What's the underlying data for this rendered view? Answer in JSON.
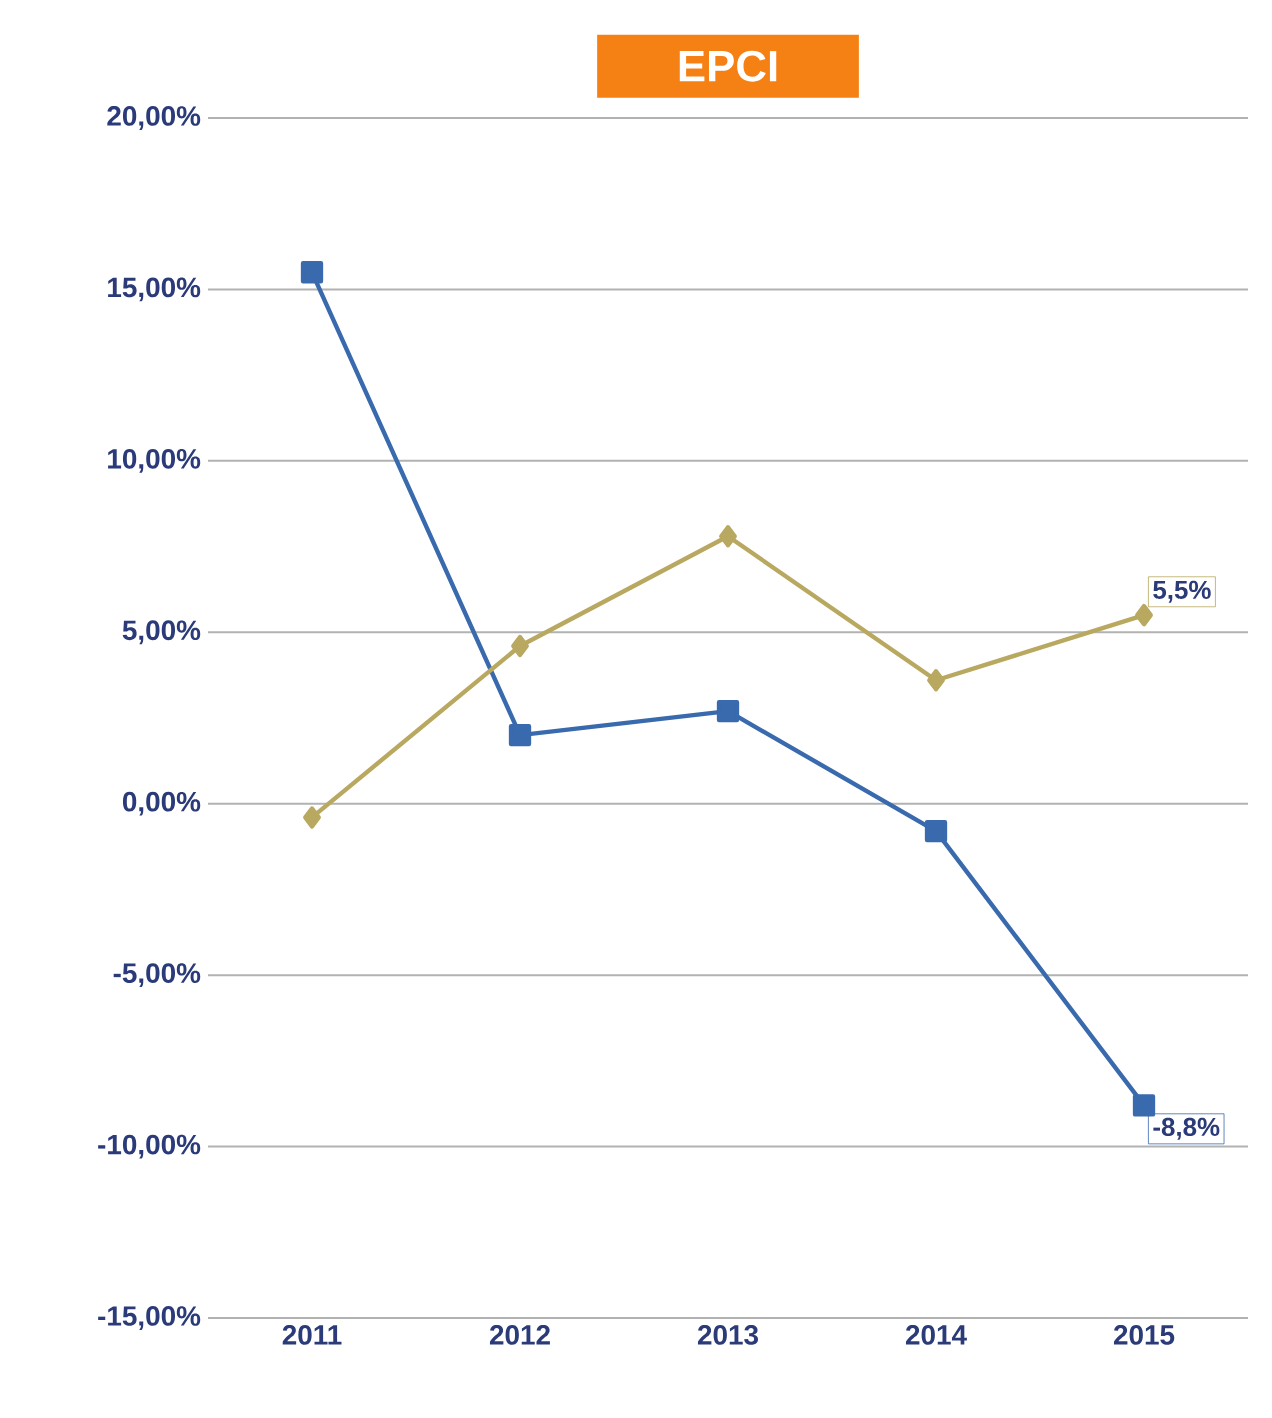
{
  "chart_data": {
    "type": "line",
    "title": "EPCI",
    "categories": [
      "2011",
      "2012",
      "2013",
      "2014",
      "2015"
    ],
    "series": [
      {
        "color": "#3a6aae",
        "marker": "square",
        "values": [
          15.5,
          2.0,
          2.7,
          -0.8,
          -8.8
        ],
        "value_labels": [
          null,
          null,
          null,
          null,
          "-8,8%"
        ]
      },
      {
        "color": "#b8a860",
        "marker": "diamond",
        "values": [
          -0.4,
          4.6,
          7.8,
          3.6,
          5.5
        ],
        "value_labels": [
          null,
          null,
          null,
          null,
          "5,5%"
        ]
      }
    ],
    "ylim": [
      -15,
      20
    ],
    "yticks": [
      {
        "value": -15,
        "label": "-15,00%"
      },
      {
        "value": -10,
        "label": "-10,00%"
      },
      {
        "value": -5,
        "label": "-5,00%"
      },
      {
        "value": 0,
        "label": "0,00%"
      },
      {
        "value": 5,
        "label": "5,00%"
      },
      {
        "value": 10,
        "label": "10,00%"
      },
      {
        "value": 15,
        "label": "15,00%"
      },
      {
        "value": 20,
        "label": "20,00%"
      }
    ],
    "grid": "y"
  }
}
